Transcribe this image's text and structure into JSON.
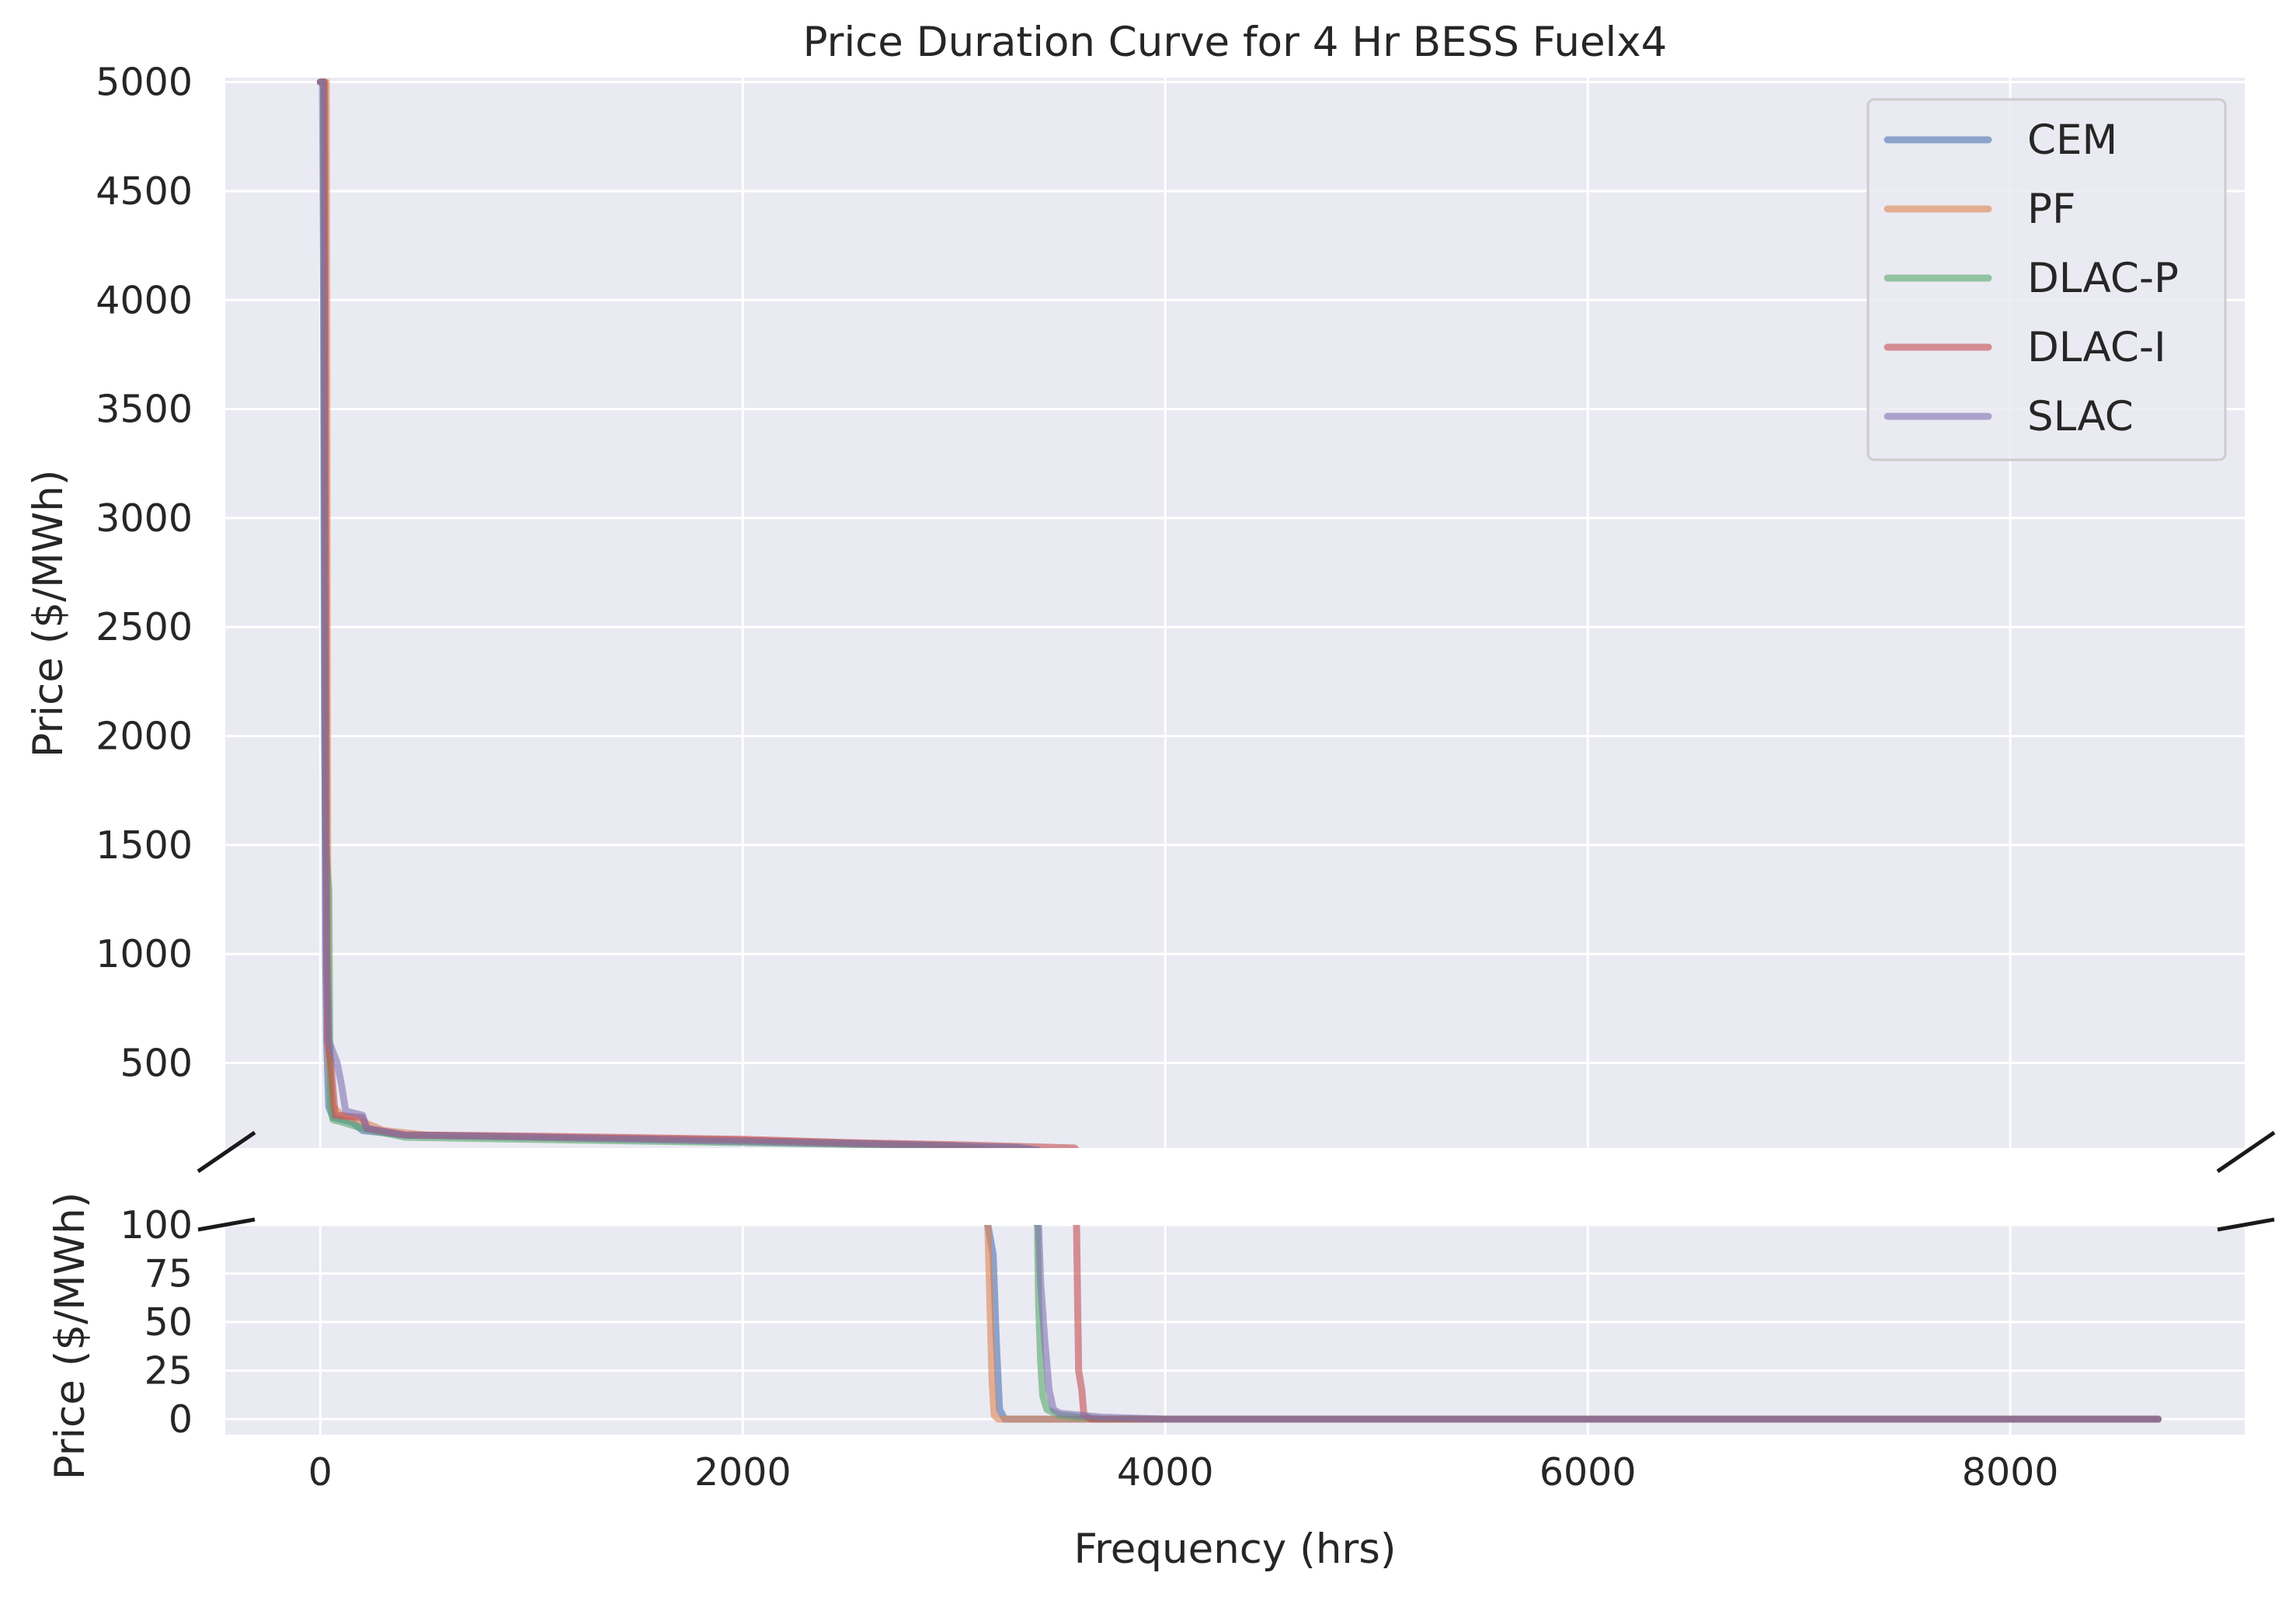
{
  "chart_data": {
    "type": "line",
    "title": "Price Duration Curve for 4 Hr BESS Fuelx4",
    "xlabel": "Frequency (hrs)",
    "ylabel_top": "Price ($/MWh)",
    "ylabel_bottom": "Price ($/MWh)",
    "broken_y_axis": true,
    "xlim": [
      -450,
      9110
    ],
    "ylim_top": [
      110,
      5020
    ],
    "ylim_bottom": [
      -8,
      100
    ],
    "xticks": [
      0,
      2000,
      4000,
      6000,
      8000
    ],
    "yticks_top": [
      500,
      1000,
      1500,
      2000,
      2500,
      3000,
      3500,
      4000,
      4500,
      5000
    ],
    "yticks_bottom": [
      0,
      25,
      50,
      75,
      100
    ],
    "grid": true,
    "legend_position": "top-right",
    "series": [
      {
        "name": "CEM",
        "color": "#4c72b0",
        "points": [
          [
            0,
            5000
          ],
          [
            15,
            5000
          ],
          [
            18,
            3600
          ],
          [
            22,
            2000
          ],
          [
            25,
            1000
          ],
          [
            30,
            600
          ],
          [
            40,
            300
          ],
          [
            60,
            250
          ],
          [
            150,
            230
          ],
          [
            200,
            190
          ],
          [
            400,
            170
          ],
          [
            1000,
            160
          ],
          [
            2000,
            145
          ],
          [
            2600,
            130
          ],
          [
            3000,
            120
          ],
          [
            3100,
            110
          ],
          [
            3160,
            100
          ],
          [
            3185,
            85
          ],
          [
            3200,
            40
          ],
          [
            3215,
            5
          ],
          [
            3240,
            0
          ],
          [
            3600,
            0
          ],
          [
            4000,
            0
          ],
          [
            8700,
            0
          ]
        ]
      },
      {
        "name": "PF",
        "color": "#dd8452",
        "points": [
          [
            0,
            5000
          ],
          [
            28,
            5000
          ],
          [
            31,
            3500
          ],
          [
            33,
            2000
          ],
          [
            36,
            1000
          ],
          [
            40,
            500
          ],
          [
            60,
            300
          ],
          [
            100,
            260
          ],
          [
            200,
            230
          ],
          [
            300,
            190
          ],
          [
            500,
            170
          ],
          [
            1000,
            160
          ],
          [
            2000,
            145
          ],
          [
            2500,
            130
          ],
          [
            3000,
            120
          ],
          [
            3100,
            110
          ],
          [
            3160,
            100
          ],
          [
            3170,
            60
          ],
          [
            3180,
            20
          ],
          [
            3190,
            2
          ],
          [
            3210,
            0
          ],
          [
            4000,
            0
          ],
          [
            8700,
            0
          ]
        ]
      },
      {
        "name": "DLAC-P",
        "color": "#55a868",
        "points": [
          [
            0,
            5000
          ],
          [
            15,
            5000
          ],
          [
            20,
            3000
          ],
          [
            25,
            1500
          ],
          [
            40,
            1300
          ],
          [
            45,
            600
          ],
          [
            50,
            300
          ],
          [
            60,
            240
          ],
          [
            100,
            230
          ],
          [
            200,
            200
          ],
          [
            400,
            160
          ],
          [
            1000,
            150
          ],
          [
            2000,
            135
          ],
          [
            2600,
            125
          ],
          [
            3000,
            118
          ],
          [
            3300,
            112
          ],
          [
            3395,
            100
          ],
          [
            3400,
            60
          ],
          [
            3410,
            30
          ],
          [
            3420,
            12
          ],
          [
            3440,
            5
          ],
          [
            3500,
            2
          ],
          [
            3700,
            0
          ],
          [
            4000,
            0
          ],
          [
            8700,
            0
          ]
        ]
      },
      {
        "name": "DLAC-I",
        "color": "#c44e52",
        "points": [
          [
            0,
            5000
          ],
          [
            20,
            5000
          ],
          [
            25,
            3000
          ],
          [
            30,
            1000
          ],
          [
            35,
            600
          ],
          [
            50,
            500
          ],
          [
            70,
            260
          ],
          [
            200,
            250
          ],
          [
            220,
            200
          ],
          [
            400,
            170
          ],
          [
            1000,
            165
          ],
          [
            2000,
            150
          ],
          [
            2500,
            135
          ],
          [
            3000,
            125
          ],
          [
            3400,
            115
          ],
          [
            3570,
            110
          ],
          [
            3580,
            100
          ],
          [
            3585,
            60
          ],
          [
            3590,
            25
          ],
          [
            3605,
            15
          ],
          [
            3615,
            2
          ],
          [
            3650,
            0
          ],
          [
            4000,
            0
          ],
          [
            8700,
            0
          ]
        ]
      },
      {
        "name": "SLAC",
        "color": "#8172b3",
        "points": [
          [
            0,
            5000
          ],
          [
            10,
            5000
          ],
          [
            15,
            4000
          ],
          [
            20,
            2000
          ],
          [
            30,
            1000
          ],
          [
            40,
            600
          ],
          [
            80,
            500
          ],
          [
            100,
            400
          ],
          [
            120,
            280
          ],
          [
            200,
            260
          ],
          [
            220,
            200
          ],
          [
            400,
            170
          ],
          [
            1000,
            160
          ],
          [
            2000,
            140
          ],
          [
            2500,
            130
          ],
          [
            3000,
            120
          ],
          [
            3300,
            112
          ],
          [
            3400,
            100
          ],
          [
            3410,
            70
          ],
          [
            3430,
            40
          ],
          [
            3450,
            15
          ],
          [
            3470,
            5
          ],
          [
            3500,
            3
          ],
          [
            3700,
            1
          ],
          [
            4000,
            0
          ],
          [
            8700,
            0
          ]
        ]
      }
    ]
  }
}
